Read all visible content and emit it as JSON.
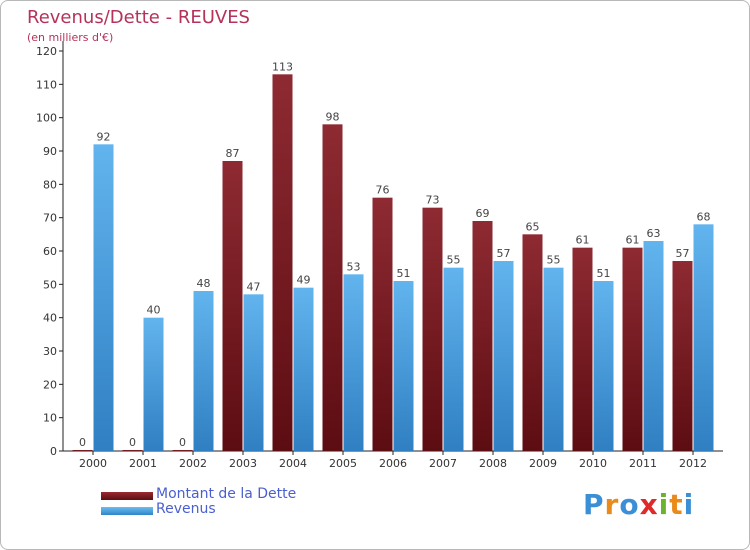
{
  "chart_data": {
    "type": "bar",
    "title": "Revenus/Dette - REUVES",
    "subtitle": "(en milliers d'€)",
    "categories": [
      "2000",
      "2001",
      "2002",
      "2003",
      "2004",
      "2005",
      "2006",
      "2007",
      "2008",
      "2009",
      "2010",
      "2011",
      "2012"
    ],
    "series": [
      {
        "name": "Montant de la Dette",
        "color": "#7a1a1f",
        "values": [
          0,
          0,
          0,
          87,
          113,
          98,
          76,
          73,
          69,
          65,
          61,
          61,
          57
        ]
      },
      {
        "name": "Revenus",
        "color": "#4fa7e6",
        "values": [
          92,
          40,
          48,
          47,
          49,
          53,
          51,
          55,
          57,
          55,
          51,
          63,
          68
        ]
      }
    ],
    "ylim": [
      0,
      120
    ],
    "yticks": [
      0,
      10,
      20,
      30,
      40,
      50,
      60,
      70,
      80,
      90,
      100,
      110,
      120
    ],
    "grid": false,
    "legend_position": "bottom-left"
  },
  "legend": {
    "debt_label": "Montant de la Dette",
    "revenue_label": "Revenus",
    "debt_color": "#7a1a1f",
    "revenue_color": "#4fa7e6"
  },
  "logo": {
    "text": "Proxiti"
  }
}
